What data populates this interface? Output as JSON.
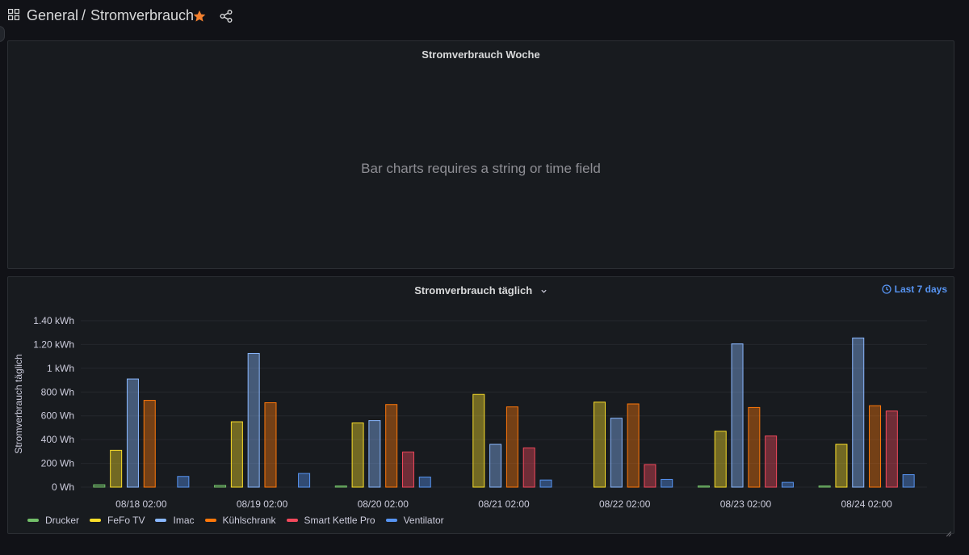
{
  "header": {
    "breadcrumb_folder": "General",
    "breadcrumb_separator": "/",
    "dashboard_title": "Stromverbrauch",
    "star_color": "#f2802f"
  },
  "panels": [
    {
      "title": "Stromverbrauch Woche",
      "message": "Bar charts requires a string or time field"
    },
    {
      "title": "Stromverbrauch täglich",
      "time_range": "Last 7 days"
    }
  ],
  "chart_data": {
    "type": "bar",
    "ylabel": "Stromverbrauch täglich",
    "ylim": [
      0,
      1400
    ],
    "yticks": [
      {
        "value": 0,
        "label": "0 Wh"
      },
      {
        "value": 200,
        "label": "200 Wh"
      },
      {
        "value": 400,
        "label": "400 Wh"
      },
      {
        "value": 600,
        "label": "600 Wh"
      },
      {
        "value": 800,
        "label": "800 Wh"
      },
      {
        "value": 1000,
        "label": "1 kWh"
      },
      {
        "value": 1200,
        "label": "1.20 kWh"
      },
      {
        "value": 1400,
        "label": "1.40 kWh"
      }
    ],
    "categories": [
      "08/18 02:00",
      "08/19 02:00",
      "08/20 02:00",
      "08/21 02:00",
      "08/22 02:00",
      "08/23 02:00",
      "08/24 02:00"
    ],
    "grid": true,
    "legend_position": "bottom",
    "series": [
      {
        "name": "Drucker",
        "color": "#73bf69",
        "values": [
          20,
          15,
          2,
          0,
          0,
          2,
          2
        ]
      },
      {
        "name": "FeFo TV",
        "color": "#fade2a",
        "values": [
          310,
          550,
          540,
          780,
          715,
          470,
          360
        ]
      },
      {
        "name": "Imac",
        "color": "#8ab8ff",
        "values": [
          910,
          1125,
          560,
          360,
          580,
          1205,
          1255
        ]
      },
      {
        "name": "Kühlschrank",
        "color": "#ff780a",
        "values": [
          730,
          710,
          695,
          675,
          700,
          670,
          685
        ]
      },
      {
        "name": "Smart Kettle Pro",
        "color": "#f2495c",
        "values": [
          0,
          0,
          295,
          330,
          190,
          430,
          640
        ]
      },
      {
        "name": "Ventilator",
        "color": "#5794f2",
        "values": [
          90,
          115,
          85,
          60,
          65,
          40,
          105
        ]
      }
    ]
  }
}
